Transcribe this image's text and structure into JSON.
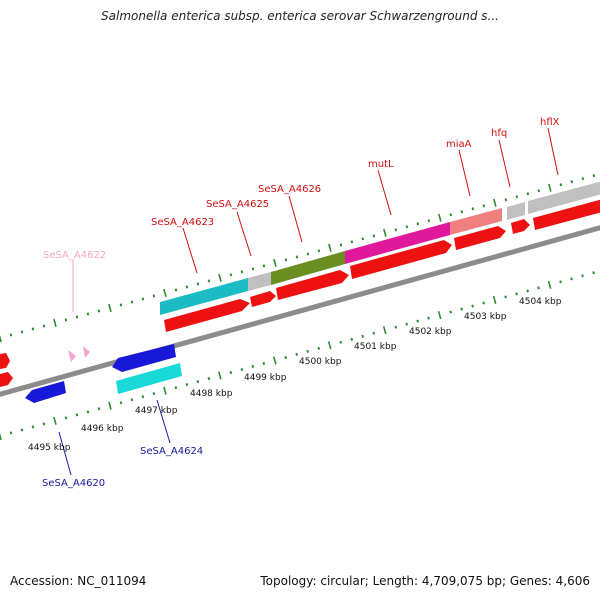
{
  "title": "Salmonella enterica subsp. enterica serovar Schwarzenground s...",
  "footer": {
    "accession": "Accession: NC_011094",
    "summary": "Topology: circular; Length: 4,709,075 bp; Genes: 4,606"
  },
  "scale_labels": [
    "4495 kbp",
    "4496 kbp",
    "4497 kbp",
    "4498 kbp",
    "4499 kbp",
    "4500 kbp",
    "4501 kbp",
    "4502 kbp",
    "4503 kbp",
    "4504 kbp"
  ],
  "gene_labels": [
    {
      "text": "SeSA_A4622",
      "color": "#f4a6c8"
    },
    {
      "text": "SeSA_A4623",
      "color": "#d01010"
    },
    {
      "text": "SeSA_A4625",
      "color": "#d01010"
    },
    {
      "text": "SeSA_A4626",
      "color": "#d01010"
    },
    {
      "text": "mutL",
      "color": "#d01010"
    },
    {
      "text": "miaA",
      "color": "#d01010"
    },
    {
      "text": "hfq",
      "color": "#d01010"
    },
    {
      "text": "hflX",
      "color": "#d01010"
    },
    {
      "text": "SeSA_A4624",
      "color": "#1a1aa0"
    },
    {
      "text": "SeSA_A4620",
      "color": "#1a1aa0"
    }
  ],
  "colors": {
    "backbone": "#8c8c8c",
    "tick": "#2e8b2e",
    "gene_red": "#ee1111",
    "gene_blue": "#1818d8",
    "gene_cyan": "#18d8d8",
    "gene_teal": "#1cbcc4",
    "gene_grey": "#c0c0c0",
    "gene_olive": "#6b8e23",
    "gene_magenta": "#e0189c",
    "gene_salmon": "#f08080",
    "gene_pink": "#f4a6c8"
  }
}
